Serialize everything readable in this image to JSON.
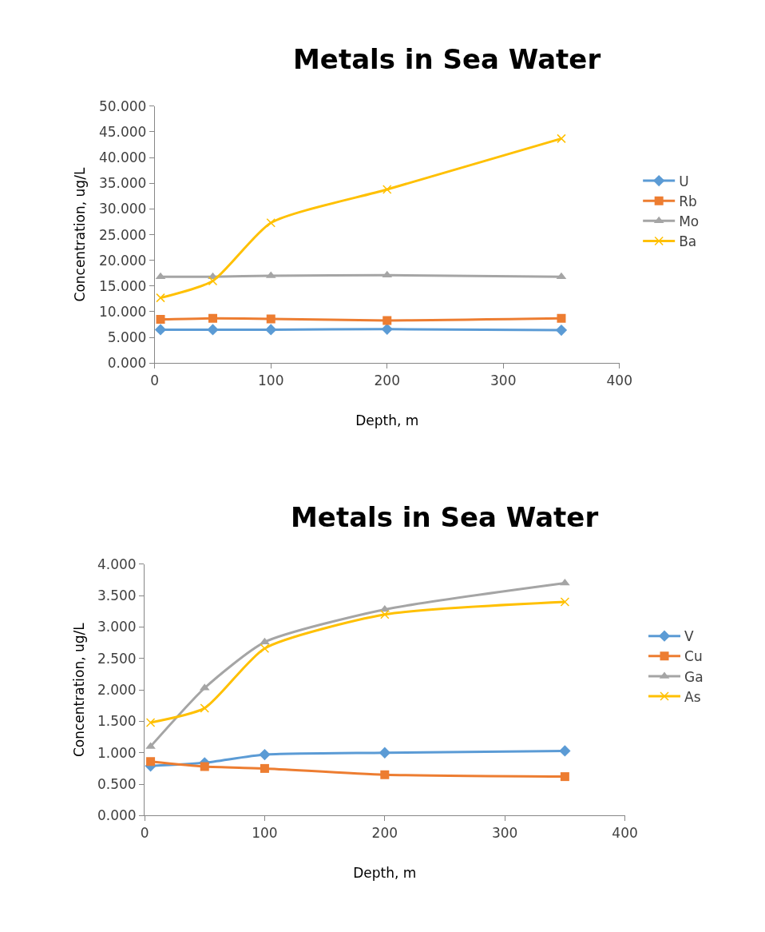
{
  "chart_data": [
    {
      "type": "line",
      "title": "Metals in Sea Water",
      "xlabel": "Depth, m",
      "ylabel": "Concentration, ug/L",
      "x": [
        5,
        50,
        100,
        200,
        350
      ],
      "series": [
        {
          "name": "U",
          "color": "#5b9bd5",
          "marker": "diamond",
          "values": [
            6.5,
            6.5,
            6.5,
            6.6,
            6.4
          ]
        },
        {
          "name": "Rb",
          "color": "#ed7d31",
          "marker": "square",
          "values": [
            8.5,
            8.7,
            8.6,
            8.3,
            8.7
          ]
        },
        {
          "name": "Mo",
          "color": "#a5a5a5",
          "marker": "triangle",
          "values": [
            16.8,
            16.8,
            17.0,
            17.1,
            16.8
          ]
        },
        {
          "name": "Ba",
          "color": "#ffc000",
          "marker": "cross",
          "values": [
            12.7,
            16.0,
            27.3,
            33.8,
            43.7
          ]
        }
      ],
      "xlim": [
        0,
        400
      ],
      "xticks": [
        0,
        100,
        200,
        300,
        400
      ],
      "ylim": [
        0,
        50
      ],
      "yticks": [
        {
          "value": 0,
          "label": "0.000"
        },
        {
          "value": 5,
          "label": "5.000"
        },
        {
          "value": 10,
          "label": "10.000"
        },
        {
          "value": 15,
          "label": "15.000"
        },
        {
          "value": 20,
          "label": "20.000"
        },
        {
          "value": 25,
          "label": "25.000"
        },
        {
          "value": 30,
          "label": "30.000"
        },
        {
          "value": 35,
          "label": "35.000"
        },
        {
          "value": 40,
          "label": "40.000"
        },
        {
          "value": 45,
          "label": "45.000"
        },
        {
          "value": 50,
          "label": "50.000"
        }
      ],
      "grid": false,
      "legend": "right"
    },
    {
      "type": "line",
      "title": "Metals in Sea Water",
      "xlabel": "Depth, m",
      "ylabel": "Concentration, ug/L",
      "x": [
        5,
        50,
        100,
        200,
        350
      ],
      "series": [
        {
          "name": "V",
          "color": "#5b9bd5",
          "marker": "diamond",
          "values": [
            0.79,
            0.84,
            0.97,
            1.0,
            1.03
          ]
        },
        {
          "name": "Cu",
          "color": "#ed7d31",
          "marker": "square",
          "values": [
            0.86,
            0.78,
            0.75,
            0.65,
            0.62
          ]
        },
        {
          "name": "Ga",
          "color": "#a5a5a5",
          "marker": "triangle",
          "values": [
            1.1,
            2.03,
            2.76,
            3.28,
            3.7
          ]
        },
        {
          "name": "As",
          "color": "#ffc000",
          "marker": "cross",
          "values": [
            1.48,
            1.71,
            2.66,
            3.2,
            3.4
          ]
        }
      ],
      "xlim": [
        0,
        400
      ],
      "xticks": [
        0,
        100,
        200,
        300,
        400
      ],
      "ylim": [
        0,
        4
      ],
      "yticks": [
        {
          "value": 0,
          "label": "0.000"
        },
        {
          "value": 0.5,
          "label": "0.500"
        },
        {
          "value": 1,
          "label": "1.000"
        },
        {
          "value": 1.5,
          "label": "1.500"
        },
        {
          "value": 2,
          "label": "2.000"
        },
        {
          "value": 2.5,
          "label": "2.500"
        },
        {
          "value": 3,
          "label": "3.000"
        },
        {
          "value": 3.5,
          "label": "3.500"
        },
        {
          "value": 4,
          "label": "4.000"
        }
      ],
      "grid": false,
      "legend": "right"
    }
  ]
}
